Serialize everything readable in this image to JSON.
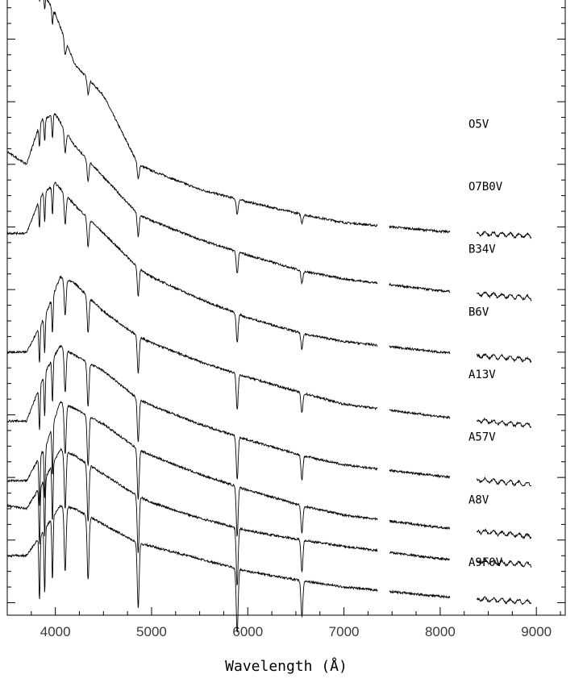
{
  "chart_data": {
    "type": "line",
    "title": "",
    "xlabel": "Wavelength (Å)",
    "ylabel": "",
    "xlim": [
      3500,
      9300
    ],
    "ylim": [
      -0.2,
      9.65
    ],
    "x_ticks": [
      4000,
      5000,
      6000,
      7000,
      8000,
      9000
    ],
    "x_tick_labels": [
      "4000",
      "5000",
      "6000",
      "7000",
      "8000",
      "9000"
    ],
    "gaps": [
      [
        7350,
        7470
      ],
      [
        8100,
        8380
      ]
    ],
    "absorption_lines": [
      3835,
      3889,
      3970,
      4102,
      4340,
      4861,
      5890,
      6563
    ],
    "series": [
      {
        "name": "O5V",
        "offset": 7.65,
        "points": [
          [
            3500,
            9.8
          ],
          [
            3800,
            9.95
          ],
          [
            4000,
            9.4
          ],
          [
            4200,
            8.6
          ],
          [
            4500,
            8.1
          ],
          [
            4861,
            7.0
          ],
          [
            5000,
            6.9
          ],
          [
            5500,
            6.6
          ],
          [
            6000,
            6.4
          ],
          [
            6563,
            6.2
          ],
          [
            7000,
            6.07
          ],
          [
            8000,
            5.93
          ],
          [
            9000,
            5.85
          ]
        ]
      },
      {
        "name": "O7B0V",
        "offset": 6.65,
        "points": [
          [
            3500,
            7.2
          ],
          [
            3700,
            7.0
          ],
          [
            3850,
            7.7
          ],
          [
            4000,
            7.8
          ],
          [
            4200,
            7.3
          ],
          [
            4500,
            6.8
          ],
          [
            4861,
            6.2
          ],
          [
            5000,
            6.1
          ],
          [
            5500,
            5.8
          ],
          [
            6000,
            5.55
          ],
          [
            6563,
            5.3
          ],
          [
            7000,
            5.17
          ],
          [
            8000,
            4.98
          ],
          [
            9000,
            4.86
          ]
        ]
      },
      {
        "name": "B34V",
        "offset": 5.65,
        "points": [
          [
            3500,
            5.9
          ],
          [
            3700,
            5.9
          ],
          [
            3850,
            6.5
          ],
          [
            4000,
            6.7
          ],
          [
            4200,
            6.35
          ],
          [
            4500,
            5.9
          ],
          [
            4861,
            5.35
          ],
          [
            5000,
            5.2
          ],
          [
            5500,
            4.85
          ],
          [
            6000,
            4.55
          ],
          [
            6563,
            4.3
          ],
          [
            7000,
            4.17
          ],
          [
            8000,
            4.0
          ],
          [
            9000,
            3.87
          ]
        ]
      },
      {
        "name": "B6V",
        "offset": 4.65,
        "points": [
          [
            3500,
            4.0
          ],
          [
            3700,
            4.0
          ],
          [
            3900,
            4.6
          ],
          [
            4050,
            5.2
          ],
          [
            4200,
            5.1
          ],
          [
            4500,
            4.65
          ],
          [
            4861,
            4.25
          ],
          [
            5000,
            4.15
          ],
          [
            5500,
            3.85
          ],
          [
            6000,
            3.6
          ],
          [
            6563,
            3.35
          ],
          [
            7000,
            3.17
          ],
          [
            8000,
            2.97
          ],
          [
            9000,
            2.82
          ]
        ]
      },
      {
        "name": "A13V",
        "offset": 3.65,
        "points": [
          [
            3500,
            2.9
          ],
          [
            3700,
            2.9
          ],
          [
            3900,
            3.7
          ],
          [
            4050,
            4.1
          ],
          [
            4200,
            3.95
          ],
          [
            4500,
            3.7
          ],
          [
            4861,
            3.25
          ],
          [
            5000,
            3.15
          ],
          [
            5500,
            2.85
          ],
          [
            6000,
            2.6
          ],
          [
            6563,
            2.35
          ],
          [
            7000,
            2.2
          ],
          [
            8000,
            2.02
          ],
          [
            9000,
            1.88
          ]
        ]
      },
      {
        "name": "A57V",
        "offset": 2.65,
        "points": [
          [
            3500,
            1.95
          ],
          [
            3700,
            1.95
          ],
          [
            3900,
            2.5
          ],
          [
            4050,
            3.2
          ],
          [
            4200,
            3.1
          ],
          [
            4500,
            2.85
          ],
          [
            4861,
            2.45
          ],
          [
            5000,
            2.35
          ],
          [
            5500,
            2.05
          ],
          [
            6000,
            1.8
          ],
          [
            6563,
            1.55
          ],
          [
            7000,
            1.4
          ],
          [
            8000,
            1.2
          ],
          [
            9000,
            1.05
          ]
        ]
      },
      {
        "name": "A8V",
        "offset": 1.65,
        "points": [
          [
            3500,
            1.55
          ],
          [
            3700,
            1.5
          ],
          [
            3900,
            2.0
          ],
          [
            4050,
            2.45
          ],
          [
            4200,
            2.35
          ],
          [
            4500,
            2.05
          ],
          [
            4861,
            1.7
          ],
          [
            5000,
            1.6
          ],
          [
            5500,
            1.35
          ],
          [
            6000,
            1.15
          ],
          [
            6563,
            1.0
          ],
          [
            7000,
            0.9
          ],
          [
            8000,
            0.7
          ],
          [
            9000,
            0.6
          ]
        ]
      },
      {
        "name": "A9F0V",
        "offset": 0.65,
        "points": [
          [
            3500,
            0.75
          ],
          [
            3700,
            0.75
          ],
          [
            3900,
            1.2
          ],
          [
            4050,
            1.55
          ],
          [
            4200,
            1.5
          ],
          [
            4500,
            1.25
          ],
          [
            4861,
            0.95
          ],
          [
            5000,
            0.9
          ],
          [
            5500,
            0.7
          ],
          [
            6000,
            0.5
          ],
          [
            6563,
            0.35
          ],
          [
            7000,
            0.25
          ],
          [
            8000,
            0.1
          ],
          [
            9000,
            0.0
          ]
        ]
      }
    ],
    "grid": false,
    "legend": "none (labels placed beside each spectrum at the right)"
  }
}
